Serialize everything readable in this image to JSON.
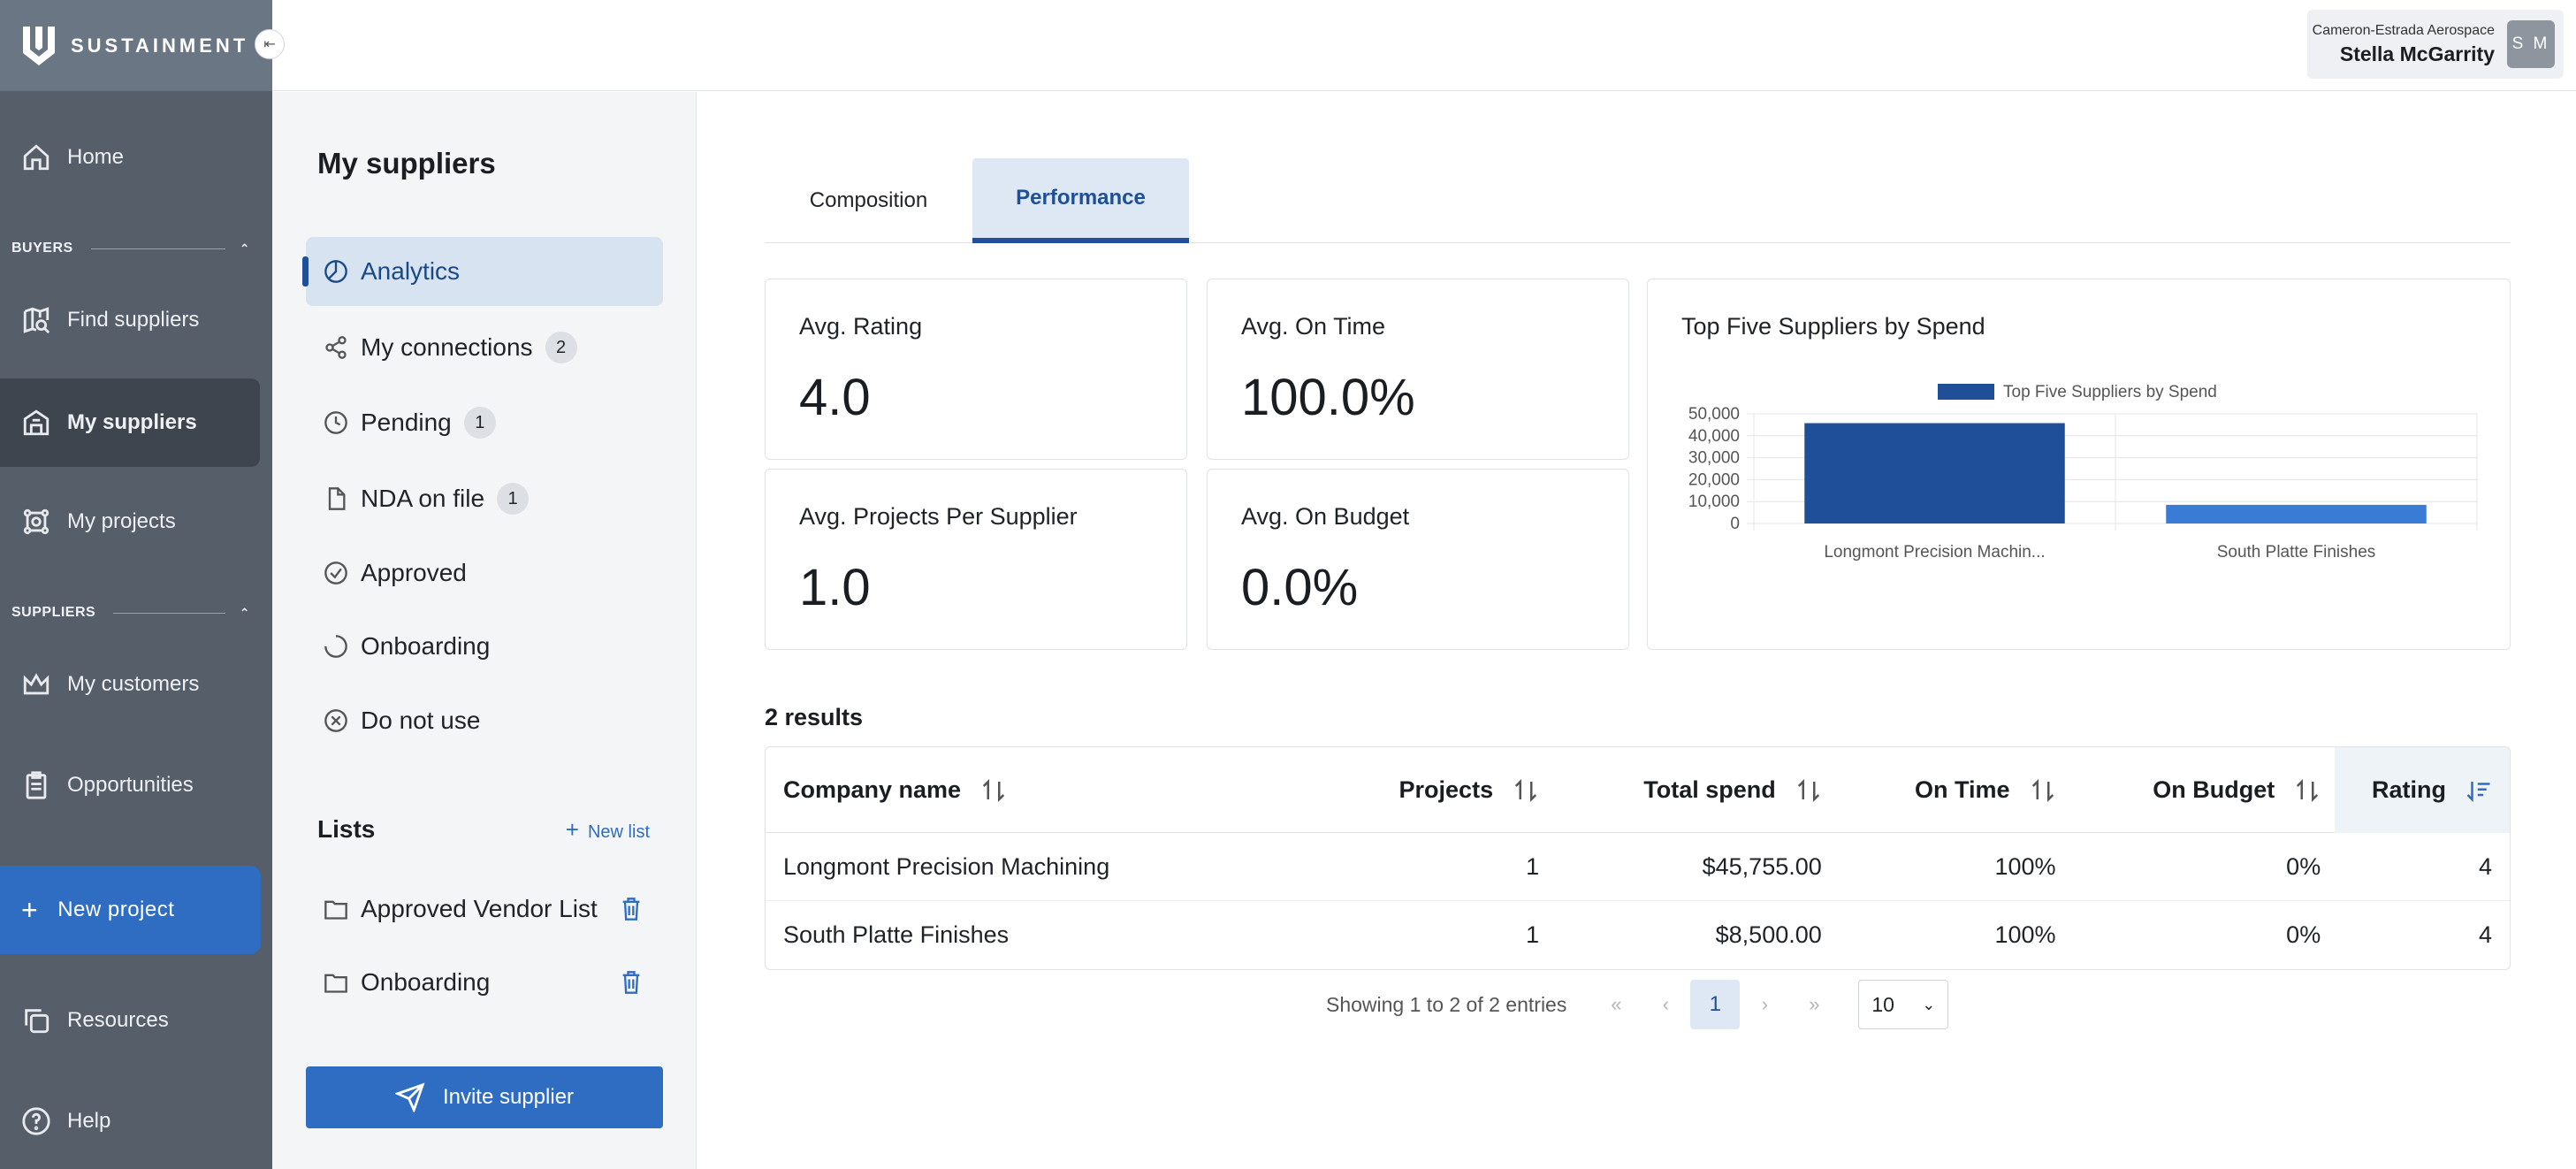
{
  "brand": {
    "name": "SUSTAINMENT"
  },
  "user": {
    "org": "Cameron-Estrada Aerospace",
    "name": "Stella McGarrity",
    "initials": "S M"
  },
  "nav": {
    "home": "Home",
    "section_buyers": "BUYERS",
    "find_suppliers": "Find suppliers",
    "my_suppliers": "My suppliers",
    "my_projects": "My projects",
    "section_suppliers": "SUPPLIERS",
    "my_customers": "My customers",
    "opportunities": "Opportunities",
    "new_project": "New project",
    "resources": "Resources",
    "help": "Help"
  },
  "subnav": {
    "title": "My suppliers",
    "items": [
      {
        "label": "Analytics",
        "icon": "analytics-icon",
        "badge": null
      },
      {
        "label": "My connections",
        "icon": "share-icon",
        "badge": "2"
      },
      {
        "label": "Pending",
        "icon": "clock-icon",
        "badge": "1"
      },
      {
        "label": "NDA on file",
        "icon": "document-icon",
        "badge": "1"
      },
      {
        "label": "Approved",
        "icon": "check-circle-icon",
        "badge": null
      },
      {
        "label": "Onboarding",
        "icon": "progress-circle-icon",
        "badge": null
      },
      {
        "label": "Do not use",
        "icon": "x-circle-icon",
        "badge": null
      }
    ],
    "lists_title": "Lists",
    "new_list": "New list",
    "lists": [
      "Approved Vendor List",
      "Onboarding"
    ],
    "invite": "Invite supplier"
  },
  "tabs": [
    "Composition",
    "Performance"
  ],
  "metrics": {
    "avg_rating": {
      "label": "Avg. Rating",
      "value": "4.0"
    },
    "avg_on_time": {
      "label": "Avg. On Time",
      "value": "100.0%"
    },
    "avg_projects": {
      "label": "Avg. Projects Per Supplier",
      "value": "1.0"
    },
    "avg_on_budget": {
      "label": "Avg. On Budget",
      "value": "0.0%"
    }
  },
  "chart_title": "Top Five Suppliers by Spend",
  "chart_data": {
    "type": "bar",
    "title": "Top Five Suppliers by Spend",
    "categories": [
      "Longmont Precision Machin...",
      "South Platte Finishes"
    ],
    "series": [
      {
        "name": "Top Five Suppliers by Spend",
        "values": [
          45755,
          8500
        ]
      }
    ],
    "ylim": [
      0,
      50000
    ],
    "yticks": [
      "50,000",
      "40,000",
      "30,000",
      "20,000",
      "10,000",
      "0"
    ],
    "colors": [
      "#1e4f98",
      "#3a7bd5"
    ],
    "legend": "top",
    "grid": true
  },
  "results_count": "2 results",
  "table": {
    "headers": [
      "Company name",
      "Projects",
      "Total spend",
      "On Time",
      "On Budget",
      "Rating"
    ],
    "rows": [
      [
        "Longmont Precision Machining",
        "1",
        "$45,755.00",
        "100%",
        "0%",
        "4"
      ],
      [
        "South Platte Finishes",
        "1",
        "$8,500.00",
        "100%",
        "0%",
        "4"
      ]
    ]
  },
  "pager": {
    "info": "Showing 1 to 2 of 2 entries",
    "current": "1",
    "per_page": "10"
  },
  "colors": {
    "primary": "#2e6dc1",
    "nav_bg": "#565e6a",
    "active_tab": "#1e4f98"
  }
}
